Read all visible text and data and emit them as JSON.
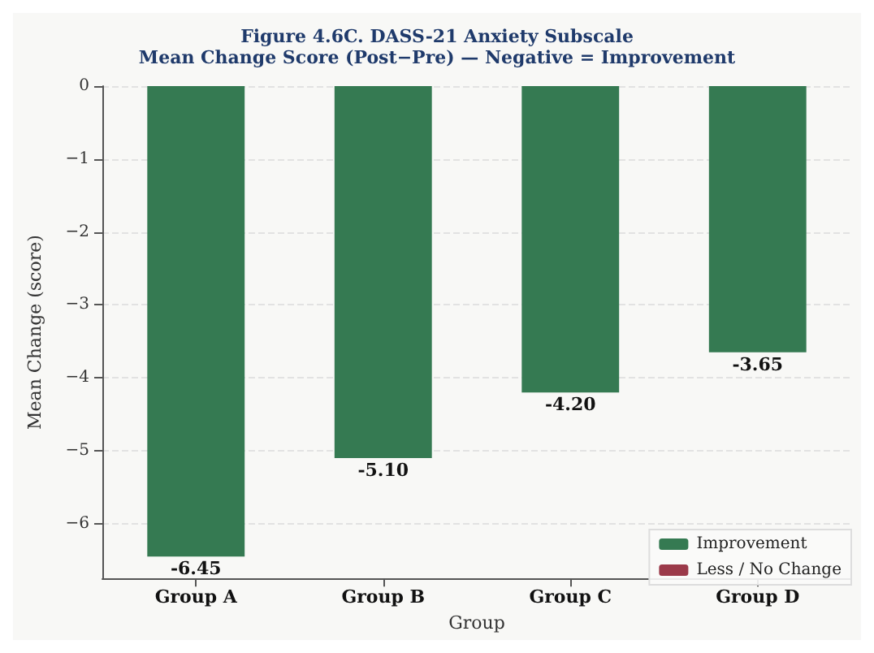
{
  "chart_data": {
    "type": "bar",
    "title": "Figure 4.6C. DASS-21 Anxiety Subscale",
    "subtitle": "Mean Change Score (Post−Pre) — Negative = Improvement",
    "xlabel": "Group",
    "ylabel": "Mean Change (score)",
    "categories": [
      "Group A",
      "Group B",
      "Group C",
      "Group D"
    ],
    "series": [
      {
        "name": "Improvement",
        "color": "#357a52",
        "values": [
          -6.45,
          -5.1,
          -4.2,
          -3.65
        ],
        "value_labels": [
          "-6.45",
          "-5.10",
          "-4.20",
          "-3.65"
        ]
      },
      {
        "name": "Less / No Change",
        "color": "#9b3a4a",
        "values": [
          null,
          null,
          null,
          null
        ]
      }
    ],
    "ylim": [
      -6.75,
      0
    ],
    "yticks": [
      {
        "value": 0,
        "label": "0"
      },
      {
        "value": -1,
        "label": "−1"
      },
      {
        "value": -2,
        "label": "−2"
      },
      {
        "value": -3,
        "label": "−3"
      },
      {
        "value": -4,
        "label": "−4"
      },
      {
        "value": -5,
        "label": "−5"
      },
      {
        "value": -6,
        "label": "−6"
      }
    ],
    "grid": "y",
    "legend": "bottom right"
  }
}
